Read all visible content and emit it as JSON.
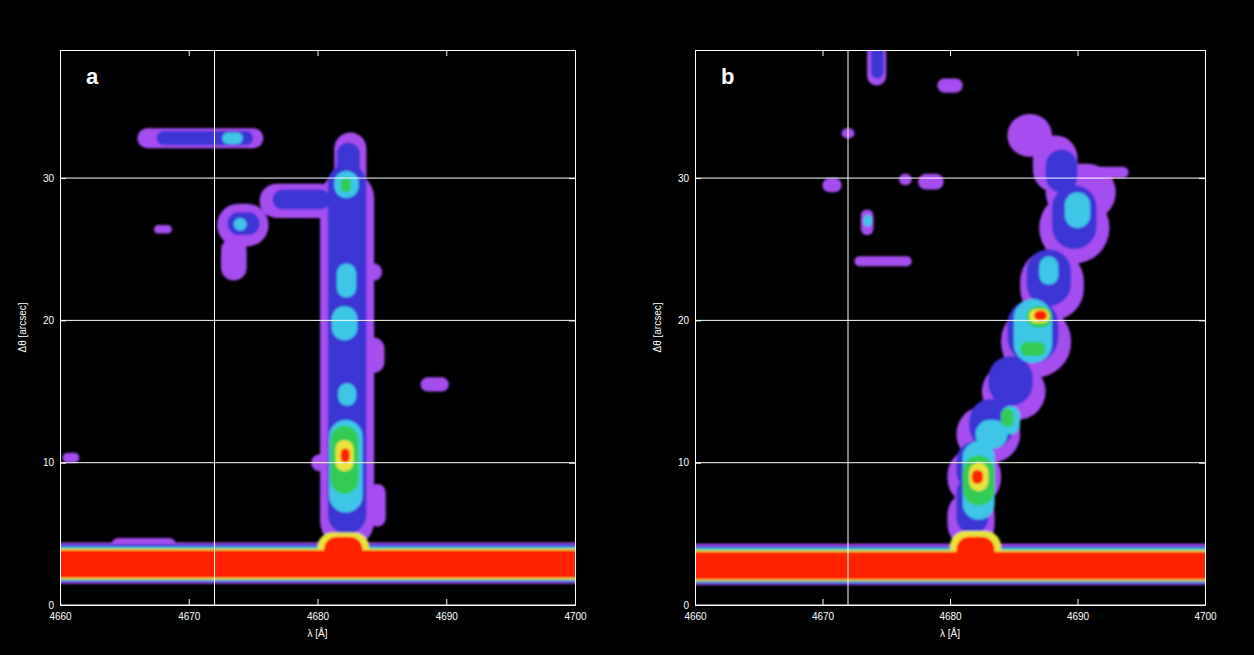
{
  "chart_data": [
    {
      "type": "heatmap",
      "panel": "a",
      "x_label": "λ [Å]",
      "y_label": "Δθ [arcsec]",
      "xlim": [
        4660,
        4700
      ],
      "ylim": [
        0,
        39
      ],
      "xticks": [
        4660,
        4670,
        4680,
        4690,
        4700
      ],
      "yticks": [
        0,
        10,
        20,
        30
      ],
      "grid": "y",
      "vline": 4672,
      "zlim": [
        1,
        6
      ],
      "cells": [
        {
          "lambda": [
            4650,
            4710
          ],
          "theta": [
            1.5,
            4.4
          ],
          "level": 1
        },
        {
          "lambda": [
            4664,
            4669
          ],
          "theta": [
            3.8,
            4.7
          ],
          "level": 1
        },
        {
          "lambda": [
            4650,
            4710
          ],
          "theta": [
            1.6,
            4.25
          ],
          "level": 2
        },
        {
          "lambda": [
            4650,
            4710
          ],
          "theta": [
            1.7,
            4.1
          ],
          "level": 3
        },
        {
          "lambda": [
            4650,
            4710
          ],
          "theta": [
            1.75,
            4.0
          ],
          "level": 4
        },
        {
          "lambda": [
            4650,
            4710
          ],
          "theta": [
            1.8,
            3.95
          ],
          "level": 5
        },
        {
          "lambda": [
            4650,
            4710
          ],
          "theta": [
            1.9,
            3.85
          ],
          "level": 6
        },
        {
          "lambda": [
            4680,
            4684
          ],
          "theta": [
            3,
            5.1
          ],
          "level": 5
        },
        {
          "lambda": [
            4680.5,
            4683.5
          ],
          "theta": [
            3,
            4.8
          ],
          "level": 6
        },
        {
          "lambda": [
            4680.2,
            4684.4
          ],
          "theta": [
            4,
            30.5
          ],
          "level": 1
        },
        {
          "lambda": [
            4681.3,
            4683.8
          ],
          "theta": [
            29,
            33.2
          ],
          "level": 1
        },
        {
          "lambda": [
            4675.5,
            4681.5
          ],
          "theta": [
            27.2,
            29.6
          ],
          "level": 1
        },
        {
          "lambda": [
            4672.2,
            4676.2
          ],
          "theta": [
            25.2,
            28.2
          ],
          "level": 1
        },
        {
          "lambda": [
            4672.5,
            4674.5
          ],
          "theta": [
            22.8,
            25.8
          ],
          "level": 1
        },
        {
          "lambda": [
            4683.5,
            4685.2
          ],
          "theta": [
            16.3,
            18.8
          ],
          "level": 1
        },
        {
          "lambda": [
            4688,
            4690.2
          ],
          "theta": [
            15,
            16
          ],
          "level": 1
        },
        {
          "lambda": [
            4667.3,
            4668.7
          ],
          "theta": [
            26.1,
            26.7
          ],
          "level": 1
        },
        {
          "lambda": [
            4660.2,
            4661.5
          ],
          "theta": [
            10,
            10.7
          ],
          "level": 1
        },
        {
          "lambda": [
            4679.5,
            4681
          ],
          "theta": [
            9.4,
            10.6
          ],
          "level": 1
        },
        {
          "lambda": [
            4684,
            4685.3
          ],
          "theta": [
            5.5,
            8.5
          ],
          "level": 1
        },
        {
          "lambda": [
            4683.8,
            4685
          ],
          "theta": [
            22.8,
            24
          ],
          "level": 1
        },
        {
          "lambda": [
            4666,
            4675.8
          ],
          "theta": [
            32.1,
            33.5
          ],
          "level": 1
        },
        {
          "lambda": [
            4680.8,
            4683.8
          ],
          "theta": [
            5,
            31
          ],
          "level": 2
        },
        {
          "lambda": [
            4681.5,
            4683.3
          ],
          "theta": [
            30,
            32.5
          ],
          "level": 2
        },
        {
          "lambda": [
            4676.5,
            4681
          ],
          "theta": [
            27.8,
            29.2
          ],
          "level": 2
        },
        {
          "lambda": [
            4673,
            4675.5
          ],
          "theta": [
            26,
            27.6
          ],
          "level": 2
        },
        {
          "lambda": [
            4667.5,
            4675
          ],
          "theta": [
            32.3,
            33.3
          ],
          "level": 2
        },
        {
          "lambda": [
            4681.3,
            4683.2
          ],
          "theta": [
            28.6,
            30.5
          ],
          "level": 3
        },
        {
          "lambda": [
            4681.5,
            4683
          ],
          "theta": [
            21.6,
            24
          ],
          "level": 3
        },
        {
          "lambda": [
            4681.1,
            4683.1
          ],
          "theta": [
            18.6,
            21
          ],
          "level": 3
        },
        {
          "lambda": [
            4681.6,
            4683
          ],
          "theta": [
            14,
            15.6
          ],
          "level": 3
        },
        {
          "lambda": [
            4680.9,
            4683.5
          ],
          "theta": [
            6.5,
            13
          ],
          "level": 3
        },
        {
          "lambda": [
            4672.6,
            4674.2
          ],
          "theta": [
            32.4,
            33.2
          ],
          "level": 3
        },
        {
          "lambda": [
            4673.5,
            4674.5
          ],
          "theta": [
            26.3,
            27.2
          ],
          "level": 3
        },
        {
          "lambda": [
            4681,
            4683.2
          ],
          "theta": [
            7.8,
            12.6
          ],
          "level": 4
        },
        {
          "lambda": [
            4681.8,
            4682.6
          ],
          "theta": [
            29,
            30
          ],
          "level": 4
        },
        {
          "lambda": [
            4681.4,
            4682.8
          ],
          "theta": [
            9.4,
            11.6
          ],
          "level": 5
        },
        {
          "lambda": [
            4681.8,
            4682.5
          ],
          "theta": [
            10,
            11
          ],
          "level": 6
        }
      ]
    },
    {
      "type": "heatmap",
      "panel": "b",
      "x_label": "λ [Å]",
      "y_label": "Δθ [arcsec]",
      "xlim": [
        4660,
        4700
      ],
      "ylim": [
        0,
        39
      ],
      "xticks": [
        4660,
        4670,
        4680,
        4690,
        4700
      ],
      "yticks": [
        0,
        10,
        20,
        30
      ],
      "grid": "y",
      "vline": 4672,
      "zlim": [
        1,
        6
      ],
      "cells": [
        {
          "lambda": [
            4650,
            4710
          ],
          "theta": [
            1.4,
            4.3
          ],
          "level": 1
        },
        {
          "lambda": [
            4650,
            4710
          ],
          "theta": [
            1.5,
            4.15
          ],
          "level": 2
        },
        {
          "lambda": [
            4650,
            4710
          ],
          "theta": [
            1.6,
            4.0
          ],
          "level": 3
        },
        {
          "lambda": [
            4650,
            4710
          ],
          "theta": [
            1.65,
            3.9
          ],
          "level": 4
        },
        {
          "lambda": [
            4650,
            4710
          ],
          "theta": [
            1.7,
            3.85
          ],
          "level": 5
        },
        {
          "lambda": [
            4650,
            4710
          ],
          "theta": [
            1.8,
            3.75
          ],
          "level": 6
        },
        {
          "lambda": [
            4680,
            4684
          ],
          "theta": [
            3,
            5.2
          ],
          "level": 5
        },
        {
          "lambda": [
            4680.5,
            4683.5
          ],
          "theta": [
            3,
            4.8
          ],
          "level": 6
        },
        {
          "lambda": [
            4679.8,
            4683.5
          ],
          "theta": [
            4,
            8
          ],
          "level": 1
        },
        {
          "lambda": [
            4679.8,
            4684
          ],
          "theta": [
            7,
            11
          ],
          "level": 1
        },
        {
          "lambda": [
            4680.5,
            4685.5
          ],
          "theta": [
            10,
            14
          ],
          "level": 1
        },
        {
          "lambda": [
            4682.5,
            4687.5
          ],
          "theta": [
            13,
            17
          ],
          "level": 1
        },
        {
          "lambda": [
            4684,
            4689.5
          ],
          "theta": [
            16,
            21
          ],
          "level": 1
        },
        {
          "lambda": [
            4685.5,
            4690.5
          ],
          "theta": [
            20,
            25
          ],
          "level": 1
        },
        {
          "lambda": [
            4687,
            4692.5
          ],
          "theta": [
            24,
            29
          ],
          "level": 1
        },
        {
          "lambda": [
            4687.5,
            4693
          ],
          "theta": [
            27,
            31
          ],
          "level": 1
        },
        {
          "lambda": [
            4686.5,
            4690
          ],
          "theta": [
            29,
            33
          ],
          "level": 1
        },
        {
          "lambda": [
            4684.5,
            4688
          ],
          "theta": [
            31.5,
            34.5
          ],
          "level": 1
        },
        {
          "lambda": [
            4691,
            4694
          ],
          "theta": [
            30,
            30.8
          ],
          "level": 1
        },
        {
          "lambda": [
            4670,
            4671.5
          ],
          "theta": [
            29,
            30
          ],
          "level": 1
        },
        {
          "lambda": [
            4676,
            4677
          ],
          "theta": [
            29.5,
            30.3
          ],
          "level": 1
        },
        {
          "lambda": [
            4677.5,
            4679.5
          ],
          "theta": [
            29.2,
            30.3
          ],
          "level": 1
        },
        {
          "lambda": [
            4672.5,
            4677
          ],
          "theta": [
            23.8,
            24.5
          ],
          "level": 1
        },
        {
          "lambda": [
            4673,
            4674
          ],
          "theta": [
            26,
            27.8
          ],
          "level": 1
        },
        {
          "lambda": [
            4673.5,
            4675
          ],
          "theta": [
            36.5,
            39.5
          ],
          "level": 1
        },
        {
          "lambda": [
            4679,
            4681
          ],
          "theta": [
            36,
            37
          ],
          "level": 1
        },
        {
          "lambda": [
            4671.5,
            4672.5
          ],
          "theta": [
            32.8,
            33.5
          ],
          "level": 1
        },
        {
          "lambda": [
            4680.5,
            4683
          ],
          "theta": [
            5,
            9
          ],
          "level": 2
        },
        {
          "lambda": [
            4680.5,
            4683.5
          ],
          "theta": [
            8,
            11.5
          ],
          "level": 2
        },
        {
          "lambda": [
            4681.5,
            4685
          ],
          "theta": [
            11,
            14.5
          ],
          "level": 2
        },
        {
          "lambda": [
            4683,
            4686.5
          ],
          "theta": [
            14,
            17.5
          ],
          "level": 2
        },
        {
          "lambda": [
            4684.5,
            4688.5
          ],
          "theta": [
            17,
            21.5
          ],
          "level": 2
        },
        {
          "lambda": [
            4686,
            4689.5
          ],
          "theta": [
            21,
            25
          ],
          "level": 2
        },
        {
          "lambda": [
            4688,
            4691.5
          ],
          "theta": [
            25,
            29.5
          ],
          "level": 2
        },
        {
          "lambda": [
            4687.5,
            4690
          ],
          "theta": [
            29,
            32
          ],
          "level": 2
        },
        {
          "lambda": [
            4673.8,
            4674.8
          ],
          "theta": [
            37,
            39.5
          ],
          "level": 2
        },
        {
          "lambda": [
            4681,
            4683.5
          ],
          "theta": [
            6,
            11.5
          ],
          "level": 3
        },
        {
          "lambda": [
            4682,
            4684.5
          ],
          "theta": [
            11,
            13
          ],
          "level": 3
        },
        {
          "lambda": [
            4684,
            4685.5
          ],
          "theta": [
            12,
            14
          ],
          "level": 3
        },
        {
          "lambda": [
            4685,
            4688
          ],
          "theta": [
            17,
            21.5
          ],
          "level": 3
        },
        {
          "lambda": [
            4687,
            4688.5
          ],
          "theta": [
            22.5,
            24.5
          ],
          "level": 3
        },
        {
          "lambda": [
            4689,
            4691
          ],
          "theta": [
            26.5,
            29
          ],
          "level": 3
        },
        {
          "lambda": [
            4673.2,
            4673.9
          ],
          "theta": [
            26.6,
            27.4
          ],
          "level": 3
        },
        {
          "lambda": [
            4681,
            4683.5
          ],
          "theta": [
            7,
            10.5
          ],
          "level": 4
        },
        {
          "lambda": [
            4684,
            4685
          ],
          "theta": [
            12.5,
            13.8
          ],
          "level": 4
        },
        {
          "lambda": [
            4685.5,
            4687.5
          ],
          "theta": [
            17.5,
            18.5
          ],
          "level": 4
        },
        {
          "lambda": [
            4686,
            4688
          ],
          "theta": [
            19.5,
            21
          ],
          "level": 4
        },
        {
          "lambda": [
            4681.5,
            4683
          ],
          "theta": [
            8,
            10
          ],
          "level": 5
        },
        {
          "lambda": [
            4686.2,
            4687.8
          ],
          "theta": [
            19.8,
            20.8
          ],
          "level": 5
        },
        {
          "lambda": [
            4681.7,
            4682.6
          ],
          "theta": [
            8.5,
            9.5
          ],
          "level": 6
        },
        {
          "lambda": [
            4686.6,
            4687.6
          ],
          "theta": [
            20,
            20.7
          ],
          "level": 6
        }
      ]
    }
  ]
}
